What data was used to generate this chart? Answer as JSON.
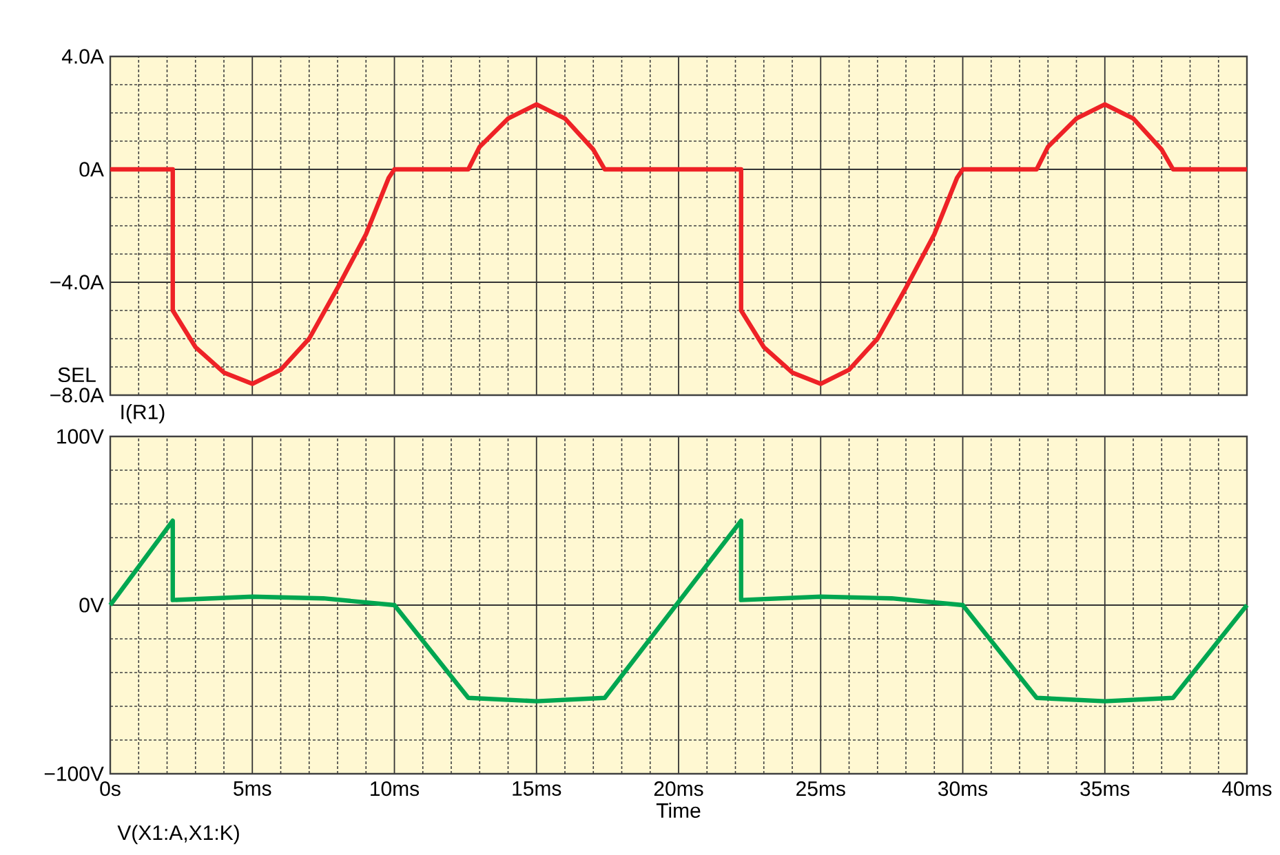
{
  "chart_data": [
    {
      "type": "line",
      "xlim": [
        0,
        40
      ],
      "ylim": [
        -8,
        4
      ],
      "x": [
        0,
        2.2,
        2.2,
        3,
        4,
        5,
        6,
        7,
        8,
        9,
        9.8,
        10,
        12.6,
        13,
        14,
        15,
        16,
        17,
        17.4,
        22.2,
        22.2,
        23,
        24,
        25,
        26,
        27,
        28,
        29,
        29.8,
        30,
        32.6,
        33,
        34,
        35,
        36,
        37,
        37.4,
        40
      ],
      "xticks": [
        0,
        5,
        10,
        15,
        20,
        25,
        30,
        35,
        40
      ],
      "yticks": [
        {
          "value": 4,
          "label": "4.0A"
        },
        {
          "value": 0,
          "label": "0A"
        },
        {
          "value": -4,
          "label": "−4.0A"
        },
        {
          "value": -8,
          "label": "−8.0A"
        }
      ],
      "tick_labels": "y",
      "grid": true,
      "line_style": "solid",
      "marker": "none",
      "series": [
        {
          "color": "#ee2226",
          "values": [
            0,
            0,
            -5,
            -6.3,
            -7.2,
            -7.6,
            -7.1,
            -6.0,
            -4.2,
            -2.3,
            -0.3,
            0,
            0,
            0.8,
            1.8,
            2.3,
            1.8,
            0.7,
            0,
            0,
            -5,
            -6.3,
            -7.2,
            -7.6,
            -7.1,
            -6.0,
            -4.2,
            -2.3,
            -0.3,
            0,
            0,
            0.8,
            1.8,
            2.3,
            1.8,
            0.7,
            0,
            0
          ]
        }
      ],
      "annotations": [
        "SEL",
        "I(R1)"
      ]
    },
    {
      "type": "line",
      "xlim": [
        0,
        40
      ],
      "ylim": [
        -100,
        100
      ],
      "x": [
        0,
        2.2,
        2.2,
        5,
        7.5,
        10,
        12.6,
        15,
        17.4,
        22.2,
        22.2,
        25,
        27.5,
        30,
        32.6,
        35,
        37.4,
        40
      ],
      "xticks": [
        {
          "value": 0,
          "label": "0s"
        },
        {
          "value": 5,
          "label": "5ms"
        },
        {
          "value": 10,
          "label": "10ms"
        },
        {
          "value": 15,
          "label": "15ms"
        },
        {
          "value": 20,
          "label": "20ms"
        },
        {
          "value": 25,
          "label": "25ms"
        },
        {
          "value": 30,
          "label": "30ms"
        },
        {
          "value": 35,
          "label": "35ms"
        },
        {
          "value": 40,
          "label": "40ms"
        }
      ],
      "yticks": [
        {
          "value": 100,
          "label": "100V"
        },
        {
          "value": 0,
          "label": "0V"
        },
        {
          "value": -100,
          "label": "−100V"
        }
      ],
      "xlabel": "Time",
      "grid": true,
      "line_style": "solid",
      "marker": "none",
      "series": [
        {
          "color": "#00a650",
          "values": [
            0,
            50,
            3,
            5,
            4,
            0,
            -55,
            -57,
            -55,
            50,
            3,
            5,
            4,
            0,
            -55,
            -57,
            -55,
            0
          ]
        }
      ],
      "annotations": [
        "V(X1:A,X1:K)"
      ]
    }
  ]
}
